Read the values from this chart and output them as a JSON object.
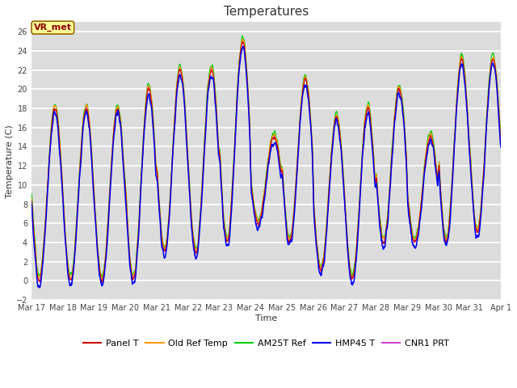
{
  "title": "Temperatures",
  "xlabel": "Time",
  "ylabel": "Temperature (C)",
  "ylim": [
    -2,
    27
  ],
  "yticks": [
    -2,
    0,
    2,
    4,
    6,
    8,
    10,
    12,
    14,
    16,
    18,
    20,
    22,
    24,
    26
  ],
  "annotation_text": "VR_met",
  "annotation_color": "#8B0000",
  "annotation_bg": "#FFFF99",
  "annotation_edge": "#996600",
  "series_colors": {
    "Panel T": "#CC0000",
    "Old Ref Temp": "#FF9900",
    "AM25T Ref": "#00CC00",
    "HMP45 T": "#0000EE",
    "CNR1 PRT": "#CC44CC"
  },
  "x_tick_labels": [
    "Mar 17",
    "Mar 18",
    "Mar 19",
    "Mar 20",
    "Mar 21",
    "Mar 22",
    "Mar 23",
    "Mar 24",
    "Mar 25",
    "Mar 26",
    "Mar 27",
    "Mar 28",
    "Mar 29",
    "Mar 30",
    "Mar 31",
    "Apr 1"
  ],
  "bg_color": "#DCDCDC",
  "grid_color": "#FFFFFF",
  "days": 15,
  "n_points": 2160,
  "figsize": [
    6.4,
    4.8
  ],
  "dpi": 100,
  "title_fontsize": 11,
  "axis_label_fontsize": 8,
  "tick_fontsize": 7,
  "legend_fontsize": 8
}
